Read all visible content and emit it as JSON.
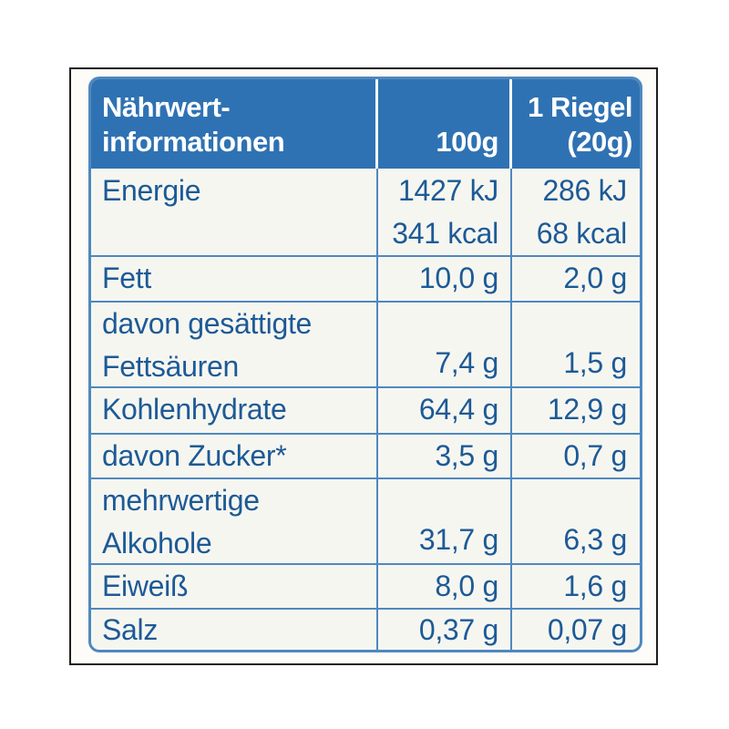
{
  "header": {
    "col1_line1": "Nährwert-",
    "col1_line2": "informationen",
    "col2": "100g",
    "col3_line1": "1 Riegel",
    "col3_line2": "(20g)"
  },
  "rows": [
    {
      "label_lines": [
        "Energie"
      ],
      "per100_lines": [
        "1427 kJ",
        "341 kcal"
      ],
      "perBar_lines": [
        "286 kJ",
        "68 kcal"
      ]
    },
    {
      "label_lines": [
        "Fett"
      ],
      "per100_lines": [
        "10,0 g"
      ],
      "perBar_lines": [
        "2,0 g"
      ]
    },
    {
      "label_lines": [
        "davon gesättigte",
        "Fettsäuren"
      ],
      "per100_lines": [
        "7,4 g"
      ],
      "perBar_lines": [
        "1,5 g"
      ]
    },
    {
      "label_lines": [
        "Kohlenhydrate"
      ],
      "per100_lines": [
        "64,4 g"
      ],
      "perBar_lines": [
        "12,9 g"
      ]
    },
    {
      "label_lines": [
        "davon Zucker*"
      ],
      "per100_lines": [
        "3,5 g"
      ],
      "perBar_lines": [
        "0,7 g"
      ]
    },
    {
      "label_lines": [
        "mehrwertige",
        "Alkohole"
      ],
      "per100_lines": [
        "31,7 g"
      ],
      "perBar_lines": [
        "6,3 g"
      ]
    },
    {
      "label_lines": [
        "Eiweiß"
      ],
      "per100_lines": [
        "8,0 g"
      ],
      "perBar_lines": [
        "1,6 g"
      ]
    },
    {
      "label_lines": [
        "Salz"
      ],
      "per100_lines": [
        "0,37 g"
      ],
      "perBar_lines": [
        "0,07 g"
      ]
    }
  ]
}
